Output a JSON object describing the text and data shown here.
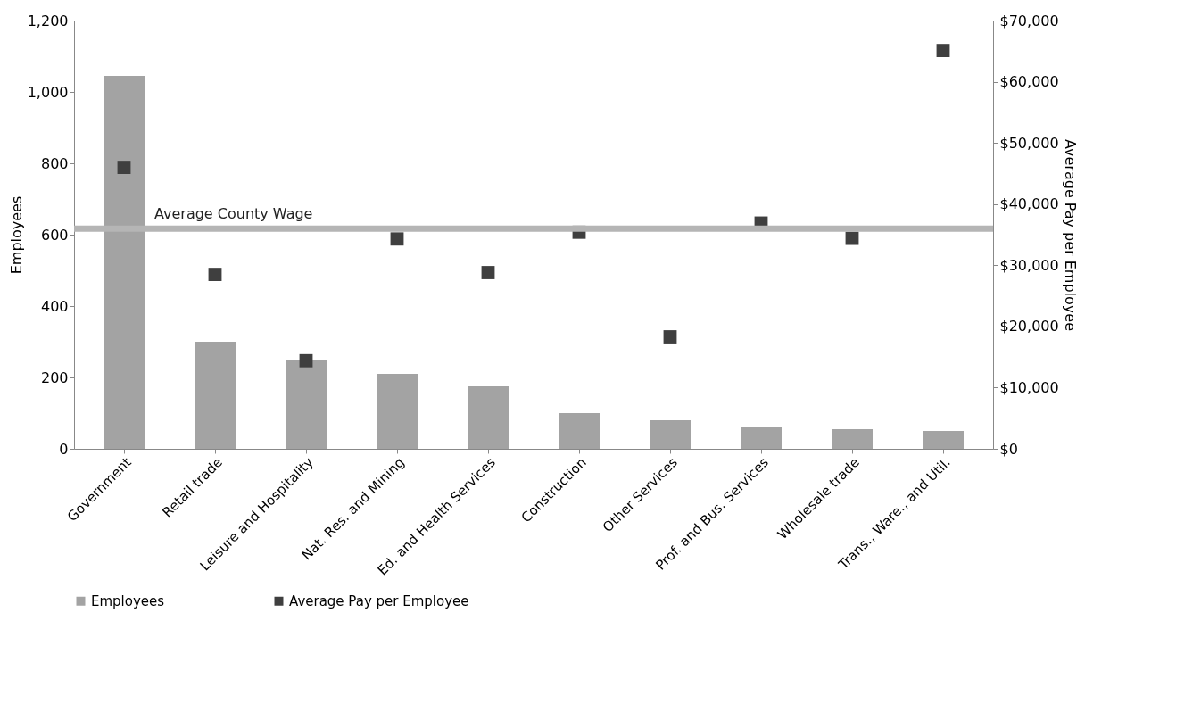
{
  "chart_data": {
    "type": "bar",
    "categories": [
      "Government",
      "Retail trade",
      "Leisure and Hospitality",
      "Nat. Res. and Mining",
      "Ed. and Health Services",
      "Construction",
      "Other Services",
      "Prof. and Bus. Services",
      "Wholesale trade",
      "Trans., Ware., and Util."
    ],
    "series": [
      {
        "name": "Employees",
        "color": "#a3a3a3",
        "values": [
          1045,
          300,
          250,
          210,
          175,
          100,
          80,
          60,
          55,
          50
        ]
      },
      {
        "name": "Average Pay per Employee",
        "type": "scatter",
        "axis": "y2",
        "color": "#3f3f3f",
        "values": [
          46000,
          28500,
          14400,
          34300,
          28800,
          35400,
          18300,
          36900,
          34400,
          65100
        ]
      }
    ],
    "ylabel": "Employees",
    "y2label": "Average Pay per Employee",
    "ylim": [
      0,
      1200
    ],
    "yticks": [
      0,
      200,
      400,
      {
        "value": 600,
        "label": "600"
      },
      800,
      {
        "value": 1000,
        "label": "1,000"
      },
      {
        "value": 1200,
        "label": "1,200"
      }
    ],
    "y2lim": [
      0,
      70000
    ],
    "y2ticks": [
      {
        "value": 0,
        "label": "$0"
      },
      {
        "value": 10000,
        "label": "$10,000"
      },
      {
        "value": 20000,
        "label": "$20,000"
      },
      {
        "value": 30000,
        "label": "$30,000"
      },
      {
        "value": 40000,
        "label": "$40,000"
      },
      {
        "value": 50000,
        "label": "$50,000"
      },
      {
        "value": 60000,
        "label": "$60,000"
      },
      {
        "value": 70000,
        "label": "$70,000"
      }
    ],
    "ref_lines": [
      {
        "axis": "y2",
        "value": 36000,
        "label": "Average County Wage",
        "color": "#b5b5b5"
      }
    ],
    "legend": "bottom",
    "grid": false,
    "marker": "square"
  }
}
